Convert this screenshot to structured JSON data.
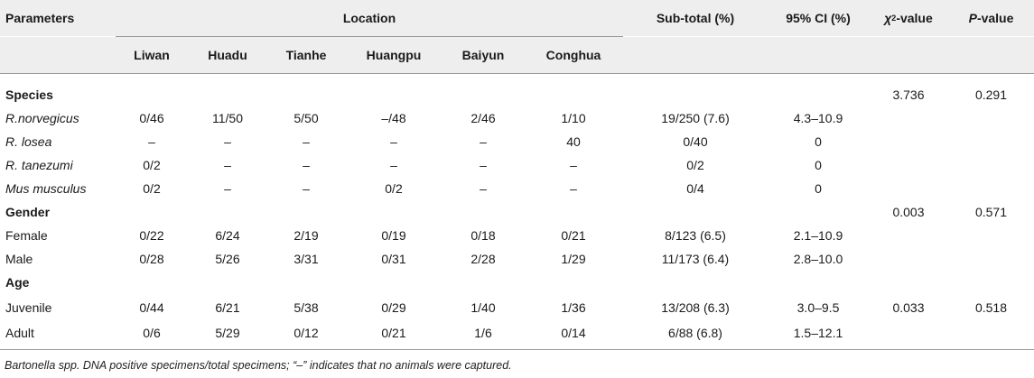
{
  "header": {
    "parameters": "Parameters",
    "location": "Location",
    "subtotal": "Sub-total (%)",
    "ci": "95% CI (%)",
    "chi_prefix": "χ",
    "chi_sup": "2",
    "chi_suffix": "-value",
    "p_italic": "P",
    "p_suffix": "-value",
    "locations": [
      "Liwan",
      "Huadu",
      "Tianhe",
      "Huangpu",
      "Baiyun",
      "Conghua"
    ]
  },
  "sections": {
    "species": {
      "title": "Species",
      "chi": "3.736",
      "p": "0.291"
    },
    "gender": {
      "title": "Gender",
      "chi": "0.003",
      "p": "0.571"
    },
    "age": {
      "title": "Age",
      "chi": "0.033",
      "p": "0.518"
    }
  },
  "rows": {
    "rnorv": {
      "label": "R.norvegicus",
      "v": [
        "0/46",
        "11/50",
        "5/50",
        "–/48",
        "2/46",
        "1/10"
      ],
      "sub": "19/250 (7.6)",
      "ci": "4.3–10.9"
    },
    "rlosea": {
      "label": "R. losea",
      "v": [
        "–",
        "–",
        "–",
        "–",
        "–",
        "40"
      ],
      "sub": "0/40",
      "ci": "0"
    },
    "rtan": {
      "label": "R. tanezumi",
      "v": [
        "0/2",
        "–",
        "–",
        "–",
        "–",
        "–"
      ],
      "sub": "0/2",
      "ci": "0"
    },
    "mus": {
      "label": "Mus musculus",
      "v": [
        "0/2",
        "–",
        "–",
        "0/2",
        "–",
        "–"
      ],
      "sub": "0/4",
      "ci": "0"
    },
    "female": {
      "label": "Female",
      "v": [
        "0/22",
        "6/24",
        "2/19",
        "0/19",
        "0/18",
        "0/21"
      ],
      "sub": "8/123 (6.5)",
      "ci": "2.1–10.9"
    },
    "male": {
      "label": "Male",
      "v": [
        "0/28",
        "5/26",
        "3/31",
        "0/31",
        "2/28",
        "1/29"
      ],
      "sub": "11/173 (6.4)",
      "ci": "2.8–10.0"
    },
    "juvenile": {
      "label": "Juvenile",
      "v": [
        "0/44",
        "6/21",
        "5/38",
        "0/29",
        "1/40",
        "1/36"
      ],
      "sub": "13/208 (6.3)",
      "ci": "3.0–9.5"
    },
    "adult": {
      "label": "Adult",
      "v": [
        "0/6",
        "5/29",
        "0/12",
        "0/21",
        "1/6",
        "0/14"
      ],
      "sub": "6/88 (6.8)",
      "ci": "1.5–12.1"
    }
  },
  "footnote": "Bartonella spp. DNA positive specimens/total specimens; “–” indicates that no animals were captured."
}
